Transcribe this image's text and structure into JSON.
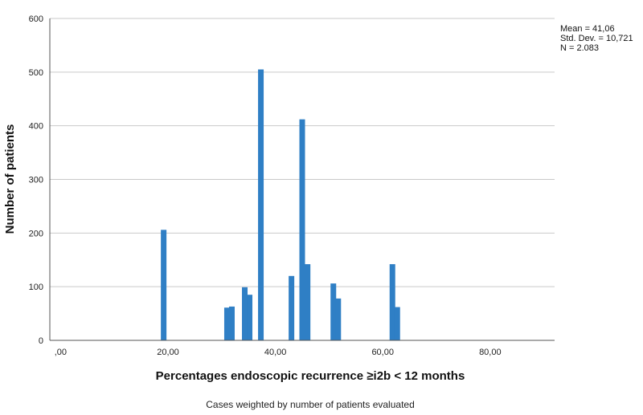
{
  "chart_data": {
    "type": "bar",
    "ylabel": "Number of patients",
    "xlabel": "Percentages endoscopic recurrence ≥i2b < 12 months",
    "footnote": "Cases weighted by number of patients evaluated",
    "stats": {
      "mean": "Mean = 41,06",
      "std": "Std. Dev. = 10,721",
      "n": "N = 2.083"
    },
    "xlim": [
      -2,
      92
    ],
    "ylim": [
      0,
      600
    ],
    "xticks": [
      {
        "value": 0,
        "label": ",00"
      },
      {
        "value": 20,
        "label": "20,00"
      },
      {
        "value": 40,
        "label": "40,00"
      },
      {
        "value": 60,
        "label": "60,00"
      },
      {
        "value": 80,
        "label": "80,00"
      }
    ],
    "yticks": [
      {
        "value": 0,
        "label": "0"
      },
      {
        "value": 100,
        "label": "100"
      },
      {
        "value": 200,
        "label": "200"
      },
      {
        "value": 300,
        "label": "300"
      },
      {
        "value": 400,
        "label": "400"
      },
      {
        "value": 500,
        "label": "500"
      },
      {
        "value": 600,
        "label": "600"
      }
    ],
    "grid": true,
    "bar_color": "#2f7fc5",
    "bars": [
      {
        "x": 19.2,
        "y": 206
      },
      {
        "x": 31.0,
        "y": 61
      },
      {
        "x": 31.9,
        "y": 63
      },
      {
        "x": 34.3,
        "y": 99
      },
      {
        "x": 35.2,
        "y": 85
      },
      {
        "x": 37.3,
        "y": 505
      },
      {
        "x": 43.0,
        "y": 120
      },
      {
        "x": 45.0,
        "y": 412
      },
      {
        "x": 46.0,
        "y": 142
      },
      {
        "x": 50.8,
        "y": 106
      },
      {
        "x": 51.7,
        "y": 78
      },
      {
        "x": 61.8,
        "y": 142
      },
      {
        "x": 62.7,
        "y": 62
      }
    ]
  }
}
